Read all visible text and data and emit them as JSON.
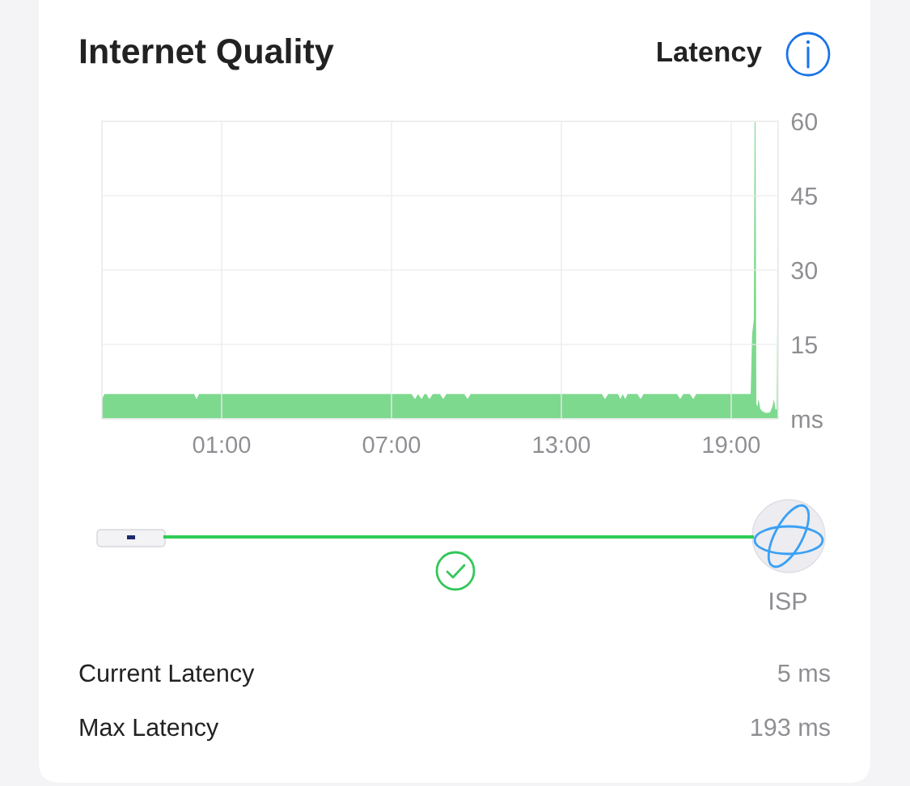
{
  "chart_data": {
    "type": "area",
    "title": "Internet Quality",
    "x": [
      -3.23,
      -3.14,
      0.03,
      0.11,
      0.2,
      7.71,
      7.83,
      7.94,
      8.06,
      8.17,
      8.23,
      8.34,
      8.46,
      8.71,
      8.83,
      8.94,
      9.57,
      9.69,
      9.8,
      14.43,
      14.54,
      14.66,
      15.0,
      15.09,
      15.17,
      15.26,
      15.34,
      15.69,
      15.8,
      15.91,
      17.09,
      17.2,
      17.31,
      17.54,
      17.66,
      17.77,
      19.69,
      19.74,
      19.8,
      19.83,
      19.86,
      19.89,
      19.93,
      19.97,
      20.03,
      20.11,
      20.23,
      20.37,
      20.46,
      20.51,
      20.57,
      20.61,
      20.66
    ],
    "values": [
      4,
      5,
      5,
      4,
      5,
      5,
      4,
      5,
      4,
      5,
      5,
      4,
      5,
      5,
      4,
      5,
      5,
      4,
      5,
      5,
      4,
      5,
      5,
      4,
      5,
      4,
      5,
      5,
      4,
      5,
      5,
      4,
      5,
      5,
      4,
      5,
      5,
      17,
      20,
      60,
      60,
      3,
      2.5,
      4,
      2,
      1.5,
      1.2,
      1.3,
      2.5,
      4,
      1.8,
      2,
      45
    ],
    "color": "#7dd98e",
    "xlim": [
      -3.23,
      20.66
    ],
    "xticks": [
      {
        "value": 1,
        "label": "01:00"
      },
      {
        "value": 7,
        "label": "07:00"
      },
      {
        "value": 13,
        "label": "13:00"
      },
      {
        "value": 19,
        "label": "19:00"
      }
    ],
    "ylim": [
      0,
      60
    ],
    "yticks": [
      {
        "value": 0,
        "label": "ms"
      },
      15,
      30,
      45,
      60
    ],
    "grid": true,
    "annotations": [
      "Latency",
      "ISP",
      "Current Latency",
      "5 ms",
      "Max Latency",
      "193 ms"
    ]
  }
}
